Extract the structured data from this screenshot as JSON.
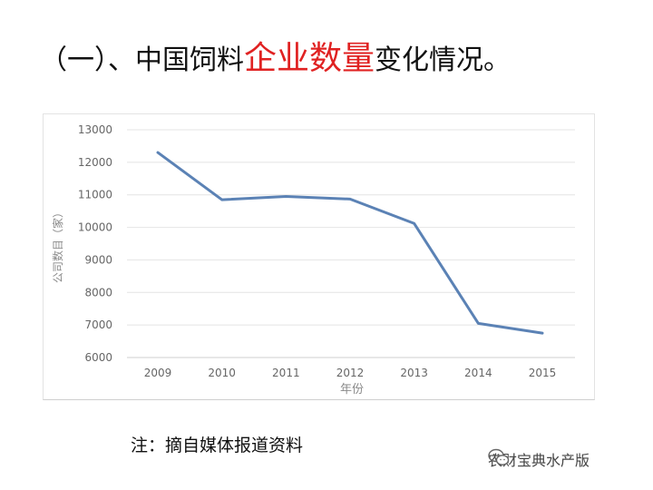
{
  "header": {
    "title_prefix": "（一）、中国饲料",
    "title_highlight": "企业数量",
    "title_suffix": "变化情况。"
  },
  "note": "注：摘自媒体报道资料",
  "watermark": {
    "text": "农财宝典水产版",
    "icon": "wechat-icon"
  },
  "colors": {
    "highlight": "#e02222",
    "line": "#5b82b5"
  },
  "chart_data": {
    "type": "line",
    "categories": [
      "2009",
      "2010",
      "2011",
      "2012",
      "2013",
      "2014",
      "2015"
    ],
    "series": [
      {
        "values": [
          12300,
          10850,
          10950,
          10870,
          10120,
          7050,
          6750
        ]
      }
    ],
    "yticks": [
      "13000",
      "12000",
      "11000",
      "10000",
      "9000",
      "8000",
      "7000",
      "6000"
    ],
    "ylim": [
      6000,
      13000
    ],
    "xlabel": "年份",
    "ylabel": "公司数目（家）",
    "grid": true
  }
}
